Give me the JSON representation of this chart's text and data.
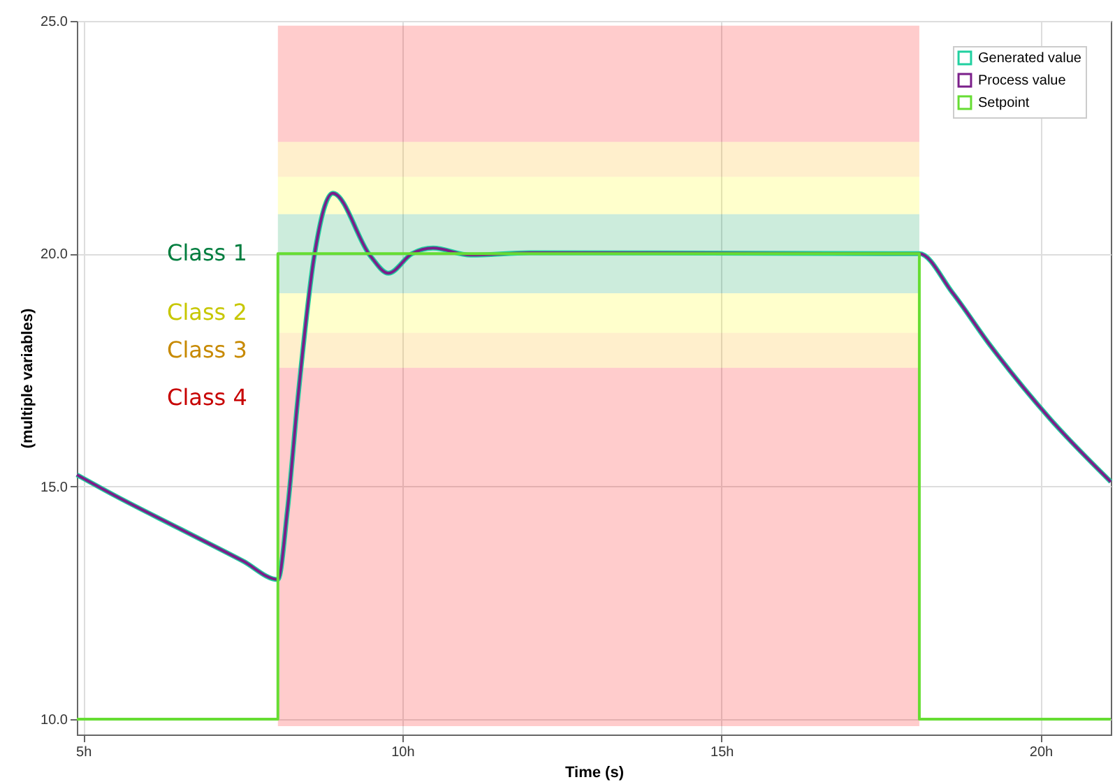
{
  "chart_data": {
    "type": "line",
    "xlabel": "Time (s)",
    "ylabel": "(multiple variables)",
    "xlim": [
      4.9,
      21.1
    ],
    "xticks": [
      {
        "value": 5,
        "label": "5h"
      },
      {
        "value": 10,
        "label": "10h"
      },
      {
        "value": 15,
        "label": "15h"
      },
      {
        "value": 20,
        "label": "20h"
      }
    ],
    "ylim": [
      9.67,
      25
    ],
    "yticks": [
      {
        "value": 10,
        "label": "10.0"
      },
      {
        "value": 15,
        "label": "15.0"
      },
      {
        "value": 20,
        "label": "20.0"
      },
      {
        "value": 25,
        "label": "25.0"
      }
    ],
    "grid": true,
    "legend": "top right",
    "bands": [
      {
        "axis": "y",
        "from": 9.85,
        "to": 17.55,
        "label": "Class 4",
        "color": "#ff0000"
      },
      {
        "axis": "y",
        "from": 22.4,
        "to": 24.9,
        "label": null,
        "color": "#ff0000"
      },
      {
        "axis": "y",
        "from": 17.55,
        "to": 18.3,
        "label": "Class 3",
        "color": "#ffb000"
      },
      {
        "axis": "y",
        "from": 21.65,
        "to": 22.4,
        "label": null,
        "color": "#ffb000"
      },
      {
        "axis": "y",
        "from": 18.3,
        "to": 19.15,
        "label": "Class 2",
        "color": "#ffff00"
      },
      {
        "axis": "y",
        "from": 20.85,
        "to": 21.65,
        "label": null,
        "color": "#ffff00"
      },
      {
        "axis": "y",
        "from": 19.15,
        "to": 20.85,
        "label": "Class 1",
        "color": "#00a050"
      }
    ],
    "series": [
      {
        "name": "Generated value",
        "color": "#20d0a0",
        "type": "line",
        "x": [
          4.9,
          5.5,
          6.5,
          7.5,
          8.05,
          8.2,
          8.36,
          8.62,
          8.91,
          9.5,
          9.78,
          10.15,
          10.48,
          11.07,
          12.0,
          18.1,
          18.62,
          19.2,
          20.15,
          21.1
        ],
        "values": [
          15.25,
          14.8,
          14.1,
          13.4,
          13.0,
          14.5,
          16.85,
          19.95,
          21.3,
          19.95,
          19.58,
          20.0,
          20.12,
          19.97,
          20.02,
          20.0,
          19.16,
          18.05,
          16.45,
          15.1
        ]
      },
      {
        "name": "Process value",
        "color": "#7b1f8a",
        "type": "line",
        "x": [
          4.9,
          5.5,
          6.5,
          7.5,
          8.05,
          8.2,
          8.36,
          8.62,
          8.91,
          9.5,
          9.78,
          10.15,
          10.48,
          11.07,
          12.0,
          18.1,
          18.62,
          19.2,
          20.15,
          21.1
        ],
        "values": [
          15.25,
          14.8,
          14.1,
          13.4,
          13.0,
          14.5,
          16.85,
          19.95,
          21.3,
          19.95,
          19.58,
          20.0,
          20.12,
          19.97,
          20.02,
          20.0,
          19.16,
          18.05,
          16.45,
          15.1
        ]
      },
      {
        "name": "Setpoint",
        "color": "#66dd33",
        "type": "step",
        "x": [
          4.9,
          8.05,
          18.1,
          21.1
        ],
        "values": [
          10,
          20,
          10,
          10
        ]
      }
    ]
  }
}
